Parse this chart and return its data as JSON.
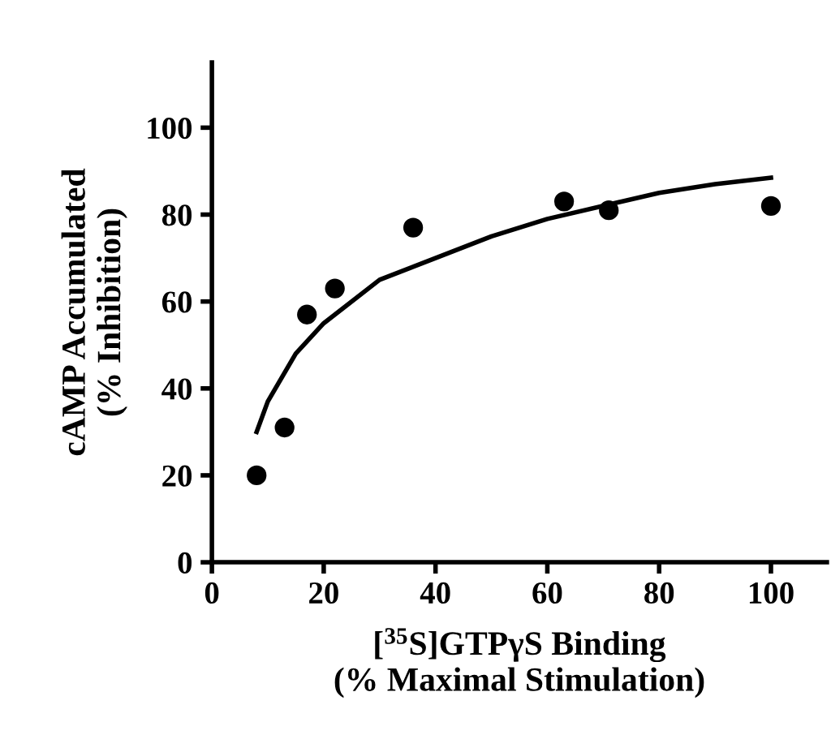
{
  "chart_data": {
    "type": "scatter",
    "xlabel": "[$^{35}$S]GTPγS Binding\n(% Maximal Stimulation)",
    "ylabel": "cAMP Accumulated\n(% Inhibition)",
    "xlim": [
      0,
      110
    ],
    "ylim": [
      0,
      115
    ],
    "xticks": [
      0,
      20,
      40,
      60,
      80,
      100
    ],
    "yticks": [
      0,
      20,
      40,
      60,
      80,
      100
    ],
    "grid": false,
    "legend": false,
    "series": [
      {
        "color": "#000000",
        "marker": "circle",
        "x": [
          8,
          13,
          17,
          22,
          36,
          63,
          71,
          100
        ],
        "values": [
          20,
          31,
          57,
          63,
          77,
          83,
          81,
          82
        ]
      },
      {
        "type": "line",
        "color": "#000000",
        "marker": "none",
        "line_style": "solid",
        "x": [
          8,
          10,
          15,
          20,
          30,
          40,
          50,
          60,
          70,
          80,
          90,
          100
        ],
        "values": [
          30,
          37,
          48,
          55,
          65,
          70,
          75,
          79,
          82,
          85,
          87,
          88.5
        ]
      }
    ]
  }
}
